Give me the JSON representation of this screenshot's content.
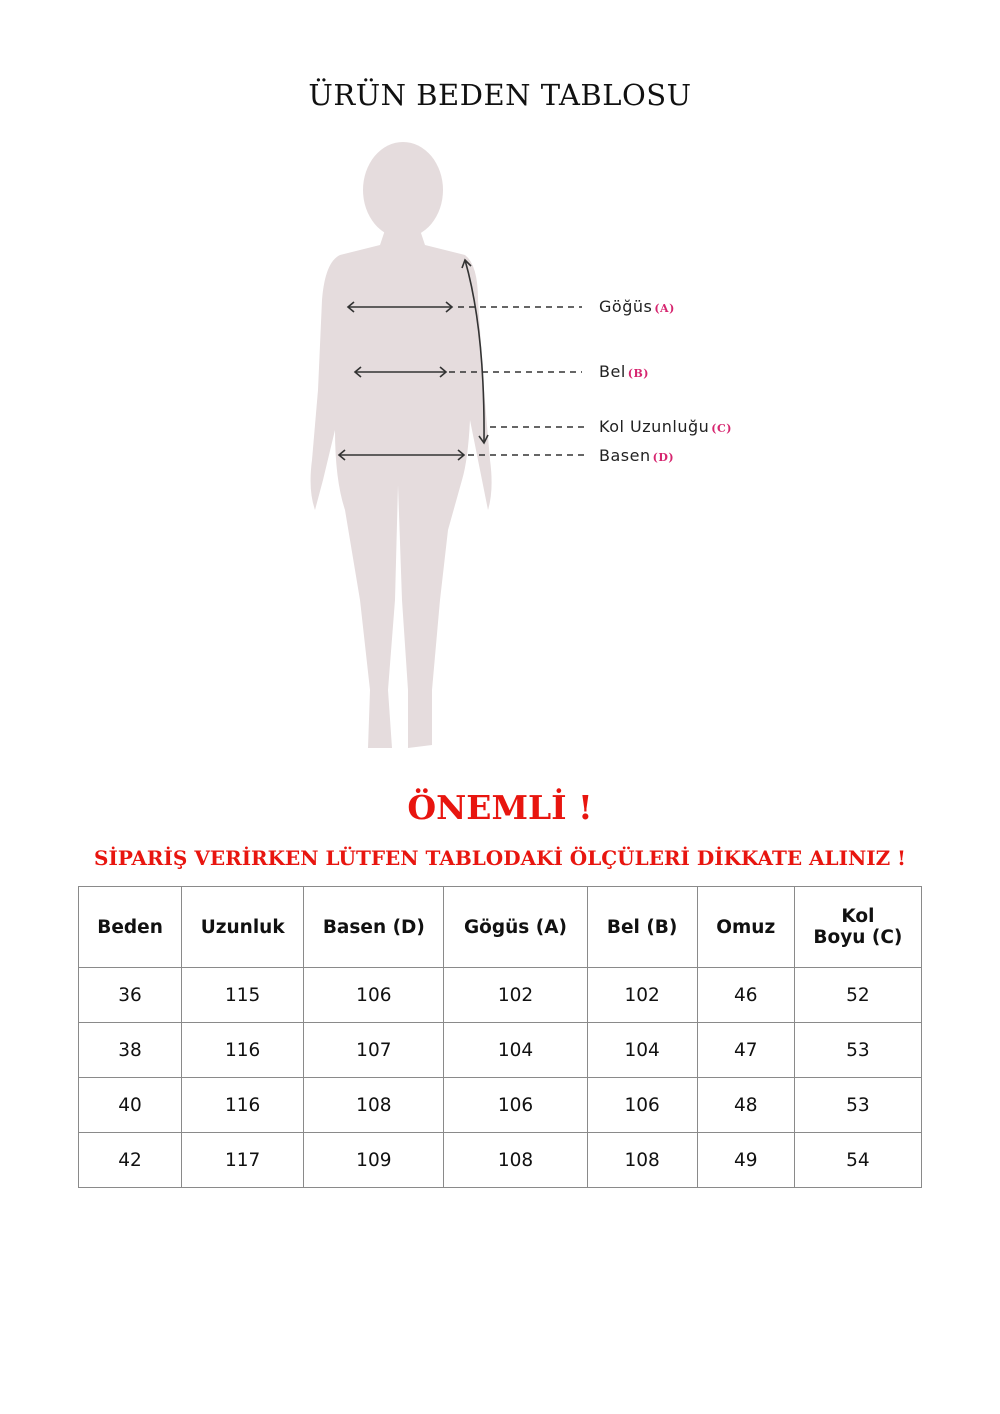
{
  "title": "ÜRÜN BEDEN TABLOSU",
  "figure": {
    "labels": [
      {
        "name": "Göğüs",
        "code": "(A)"
      },
      {
        "name": "Bel",
        "code": "(B)"
      },
      {
        "name": "Kol Uzunluğu",
        "code": "(C)"
      },
      {
        "name": "Basen",
        "code": "(D)"
      }
    ],
    "silhouette_color": "#e5dcdd",
    "code_color": "#d6256f"
  },
  "important": "ÖNEMLİ !",
  "notice": "SİPARİŞ VERİRKEN LÜTFEN TABLODAKİ ÖLÇÜLERİ DİKKATE ALINIZ !",
  "alert_color": "#e8150f",
  "table": {
    "headers": [
      "Beden",
      "Uzunluk",
      "Basen (D)",
      "Gögüs (A)",
      "Bel (B)",
      "Omuz",
      "Kol Boyu (C)"
    ],
    "header_kol_line1": "Kol",
    "header_kol_line2": "Boyu (C)",
    "rows": [
      [
        "36",
        "115",
        "106",
        "102",
        "102",
        "46",
        "52"
      ],
      [
        "38",
        "116",
        "107",
        "104",
        "104",
        "47",
        "53"
      ],
      [
        "40",
        "116",
        "108",
        "106",
        "106",
        "48",
        "53"
      ],
      [
        "42",
        "117",
        "109",
        "108",
        "108",
        "49",
        "54"
      ]
    ]
  }
}
